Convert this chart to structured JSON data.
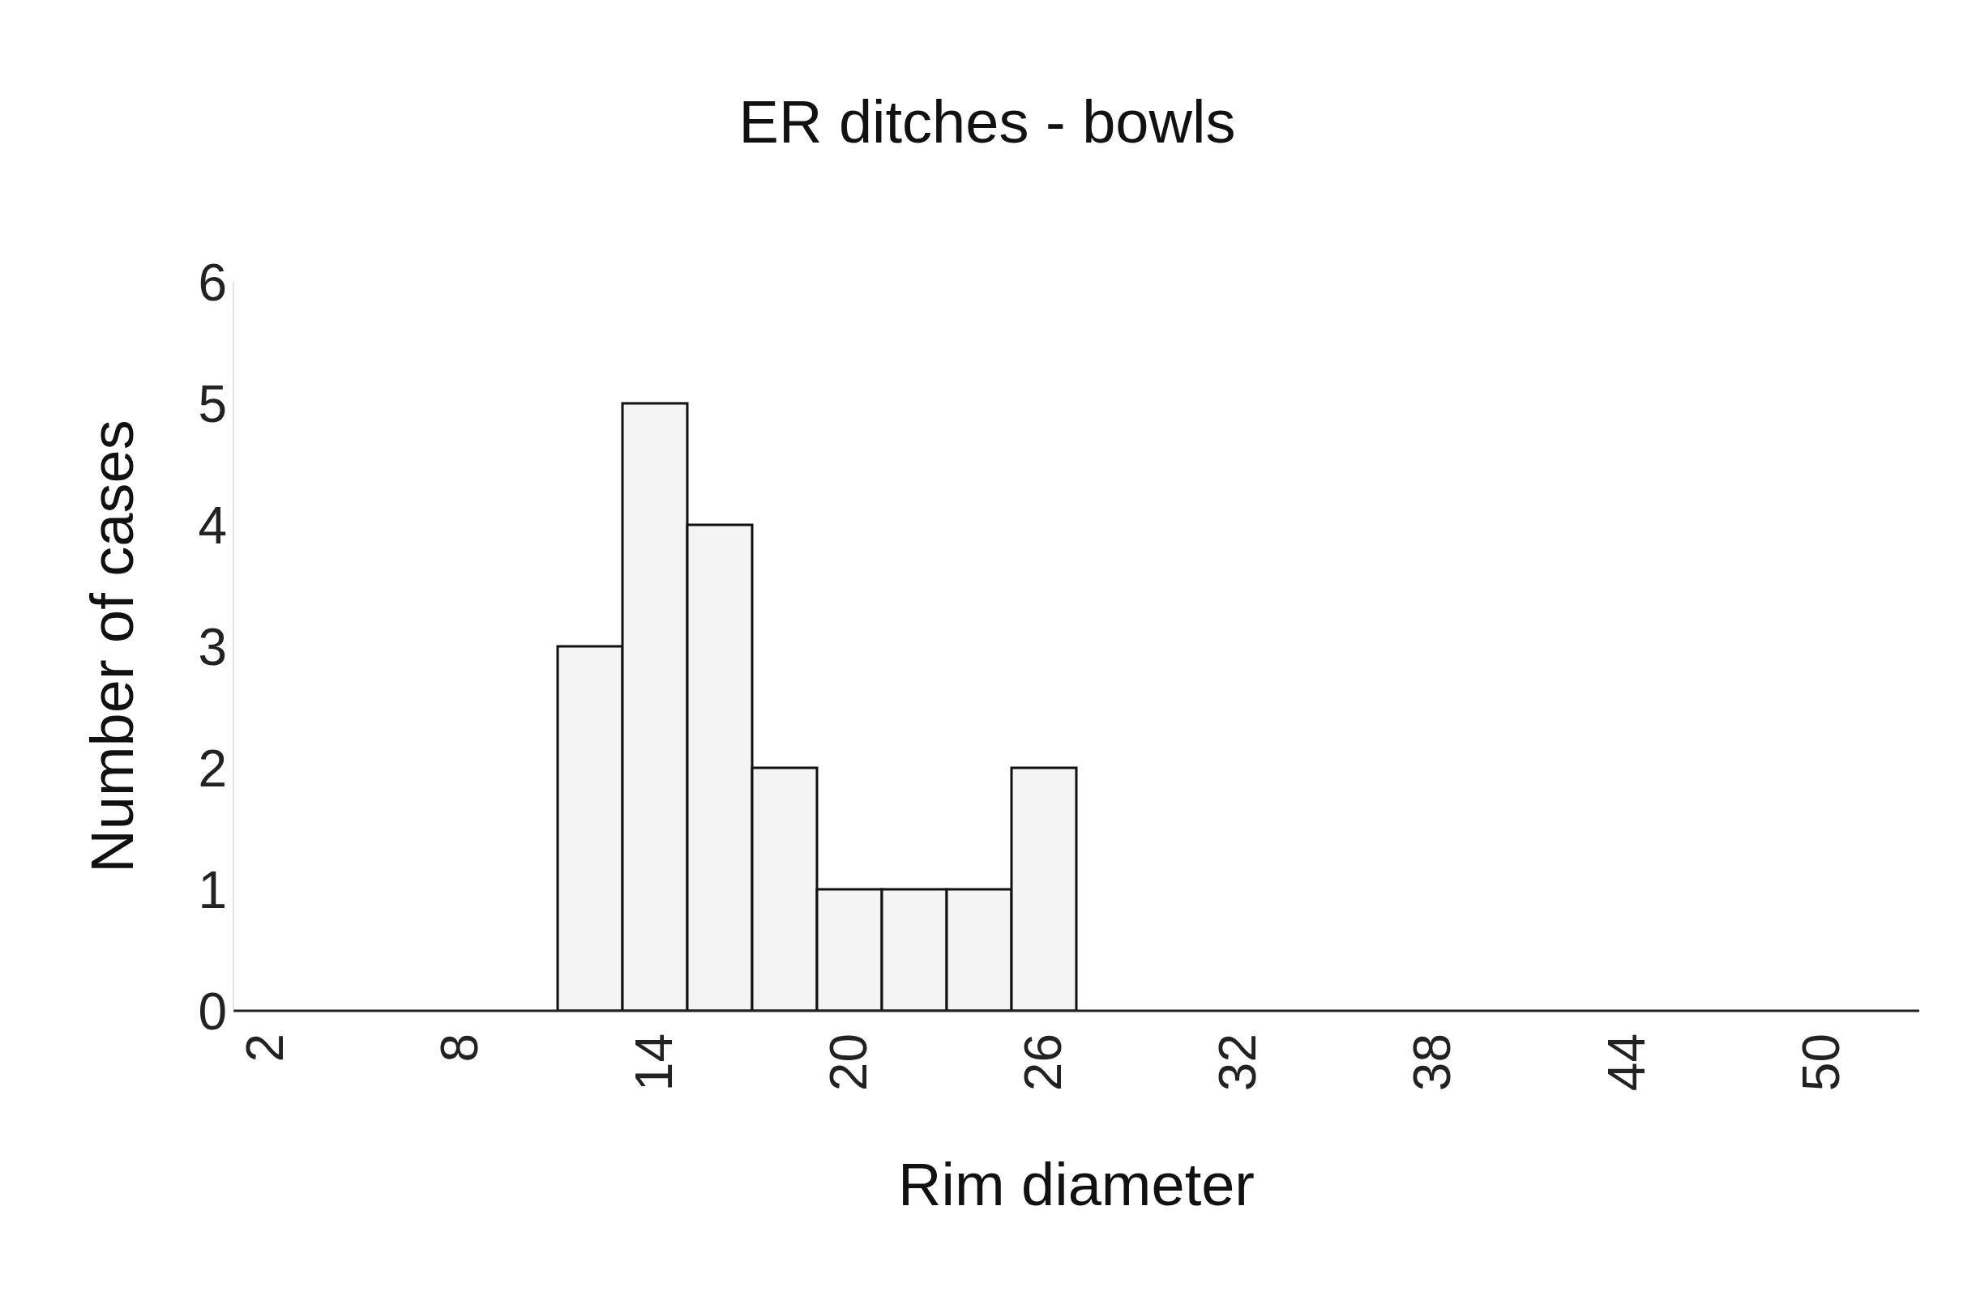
{
  "chart_data": {
    "type": "bar",
    "title": "ER ditches - bowls",
    "xlabel": "Rim diameter",
    "ylabel": "Number of cases",
    "categories": [
      "2",
      null,
      null,
      "8",
      null,
      null,
      "14",
      null,
      null,
      "20",
      null,
      null,
      "26",
      null,
      null,
      "32",
      null,
      null,
      "38",
      null,
      null,
      "44",
      null,
      null,
      "50",
      null
    ],
    "values": [
      0,
      0,
      0,
      0,
      0,
      3,
      5,
      4,
      2,
      1,
      1,
      1,
      2,
      0,
      0,
      0,
      0,
      0,
      0,
      0,
      0,
      0,
      0,
      0,
      0,
      0
    ],
    "color": "#f4f4f4",
    "ylim": [
      0,
      6
    ],
    "yticks": [
      0,
      1,
      2,
      3,
      4,
      5,
      6
    ],
    "grid": false
  }
}
